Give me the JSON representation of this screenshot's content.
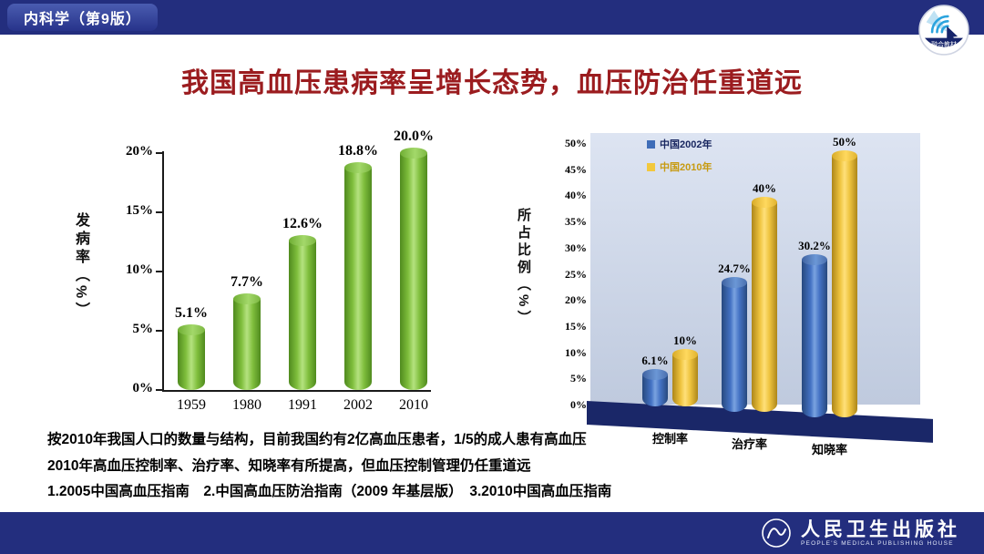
{
  "header": {
    "course_label": "内科学（第9版）",
    "badge_label": "融合教材",
    "bar_color": "#232e7e"
  },
  "title": "我国高血压患病率呈增长态势，血压防治任重道远",
  "title_color": "#9b1c1f",
  "chart_data": [
    {
      "type": "bar",
      "title": "",
      "ylabel": "发病率（%）",
      "xlabel": "",
      "categories": [
        "1959",
        "1980",
        "1991",
        "2002",
        "2010"
      ],
      "values": [
        5.1,
        7.7,
        12.6,
        18.8,
        20.0
      ],
      "data_labels": [
        "5.1%",
        "7.7%",
        "12.6%",
        "18.8%",
        "20.0%"
      ],
      "yticks": [
        "0%",
        "5%",
        "10%",
        "15%",
        "20%"
      ],
      "ylim": [
        0,
        20
      ],
      "bar_color": "#7cbb3f",
      "bar_style": "3d-cylinder",
      "grid": false,
      "legend": "none"
    },
    {
      "type": "bar",
      "title": "",
      "ylabel": "所占比例（%）",
      "xlabel": "",
      "categories": [
        "控制率",
        "治疗率",
        "知晓率"
      ],
      "series": [
        {
          "name": "中国2002年",
          "color": "#3f6db8",
          "values": [
            6.1,
            24.7,
            30.2
          ],
          "labels": [
            "6.1%",
            "24.7%",
            "30.2%"
          ]
        },
        {
          "name": "中国2010年",
          "color": "#f2c83d",
          "values": [
            10,
            40,
            50
          ],
          "labels": [
            "10%",
            "40%",
            "50%"
          ]
        }
      ],
      "yticks": [
        "0%",
        "5%",
        "10%",
        "15%",
        "20%",
        "25%",
        "30%",
        "35%",
        "40%",
        "45%",
        "50%"
      ],
      "ylim": [
        0,
        50
      ],
      "legend_position": "top-left",
      "bar_style": "3d-cylinder",
      "wall_color": "#c9d3e7",
      "floor_color": "#1a2768",
      "grid": false
    }
  ],
  "notes": [
    "按2010年我国人口的数量与结构，目前我国约有2亿高血压患者，1/5的成人患有高血压",
    "2010年高血压控制率、治疗率、知晓率有所提高，但血压控制管理仍任重道远",
    "1.2005中国高血压指南　2.中国高血压防治指南（2009 年基层版）　3.2010中国高血压指南"
  ],
  "footer": {
    "publisher_cn": "人民卫生出版社",
    "publisher_en": "PEOPLE'S MEDICAL PUBLISHING HOUSE"
  }
}
